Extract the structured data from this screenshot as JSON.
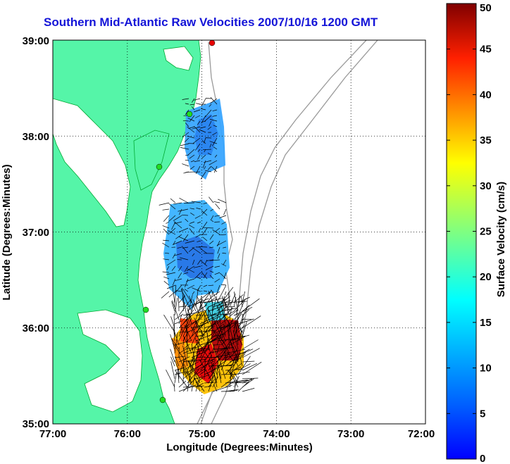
{
  "title": "Southern Mid-Atlantic Raw Velocities 2007/10/16 1200 GMT",
  "map": {
    "xlabel": "Longitude (Degrees:Minutes)",
    "ylabel": "Latitude (Degrees:Minutes)",
    "lon_ticks": [
      "77:00",
      "76:00",
      "75:00",
      "74:00",
      "73:00",
      "72:00"
    ],
    "lat_ticks": [
      "39:00",
      "38:00",
      "37:00",
      "36:00",
      "35:00"
    ],
    "lon_range": [
      -77,
      -72
    ],
    "lat_range": [
      35,
      39
    ],
    "land_color": "#55f5a8",
    "water_color": "#ffffff",
    "bathymetry_color": "#9a9a9a",
    "grid": true
  },
  "colorbar": {
    "label": "Surface Velocity (cm/s)",
    "ticks": [
      "50",
      "45",
      "40",
      "35",
      "30",
      "25",
      "20",
      "15",
      "10",
      "5",
      "0"
    ],
    "range": [
      0,
      50
    ],
    "colormap": "jet"
  },
  "stations": [
    {
      "name": "north-red",
      "color": "#e80000"
    },
    {
      "name": "station-1",
      "color": "#22dd22"
    },
    {
      "name": "station-2",
      "color": "#22dd22"
    },
    {
      "name": "station-3",
      "color": "#22dd22"
    },
    {
      "name": "station-4",
      "color": "#22dd22"
    }
  ]
}
